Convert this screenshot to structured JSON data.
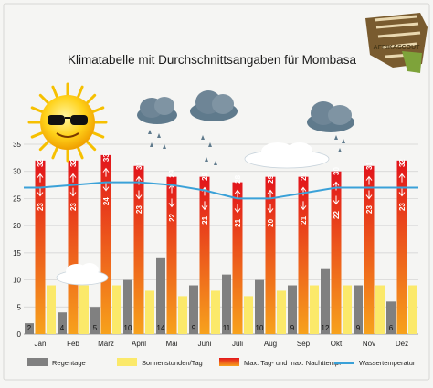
{
  "title": "Klimatabelle mit Durchschnittsangaben für Mombasa",
  "logo_text": "AFRIKASCOUT",
  "colors": {
    "background": "#f5f5f3",
    "frame": "#d8d8d4",
    "rain": "#808080",
    "sun": "#fbe96a",
    "temp_top": "#e2141b",
    "temp_bottom": "#f7a21c",
    "water": "#3aa1d8",
    "grid": "#d0d0d0",
    "text": "#222222",
    "cloud": "#ffffff",
    "rain_cloud": "#6e8596"
  },
  "chart_data": {
    "type": "bar",
    "categories": [
      "Jan",
      "Feb",
      "März",
      "April",
      "Mai",
      "Juni",
      "Juli",
      "Aug",
      "Sep",
      "Okt",
      "Nov",
      "Dez"
    ],
    "ylim": [
      0,
      35
    ],
    "yticks": [
      0,
      5,
      10,
      15,
      20,
      25,
      30,
      35
    ],
    "grid": true,
    "legend_position": "bottom",
    "series": [
      {
        "name": "Regentage",
        "type": "bar",
        "values": [
          2,
          4,
          5,
          10,
          14,
          9,
          11,
          10,
          9,
          12,
          9,
          6
        ],
        "labels": [
          "2",
          "4",
          "5",
          "10",
          "14",
          "9",
          "11",
          "10",
          "9",
          "12",
          "9",
          "6"
        ]
      },
      {
        "name": "Sonnenstunden/Tag",
        "type": "bar",
        "values": [
          9,
          9,
          9,
          8,
          7,
          8,
          7,
          8,
          9,
          9,
          9,
          9
        ]
      },
      {
        "name": "Max. Tag- und max. Nachttemp.",
        "type": "range_bar",
        "max": [
          32,
          32,
          33,
          31,
          29,
          29,
          28,
          29,
          29,
          30,
          31,
          32
        ],
        "min": [
          23,
          23,
          24,
          23,
          22,
          21,
          21,
          20,
          21,
          22,
          23,
          23
        ],
        "max_labels": [
          "32",
          "32",
          "33",
          "31",
          "29",
          "29",
          "28",
          "29",
          "29",
          "30",
          "31",
          "32"
        ],
        "min_labels": [
          "23",
          "23",
          "24",
          "23",
          "22",
          "21",
          "21",
          "20",
          "21",
          "22",
          "23",
          "23"
        ]
      },
      {
        "name": "Wassertemperatur",
        "type": "line",
        "values": [
          27,
          27.5,
          28,
          28,
          27.5,
          26.5,
          25,
          25,
          26,
          27,
          27,
          27
        ]
      }
    ]
  }
}
